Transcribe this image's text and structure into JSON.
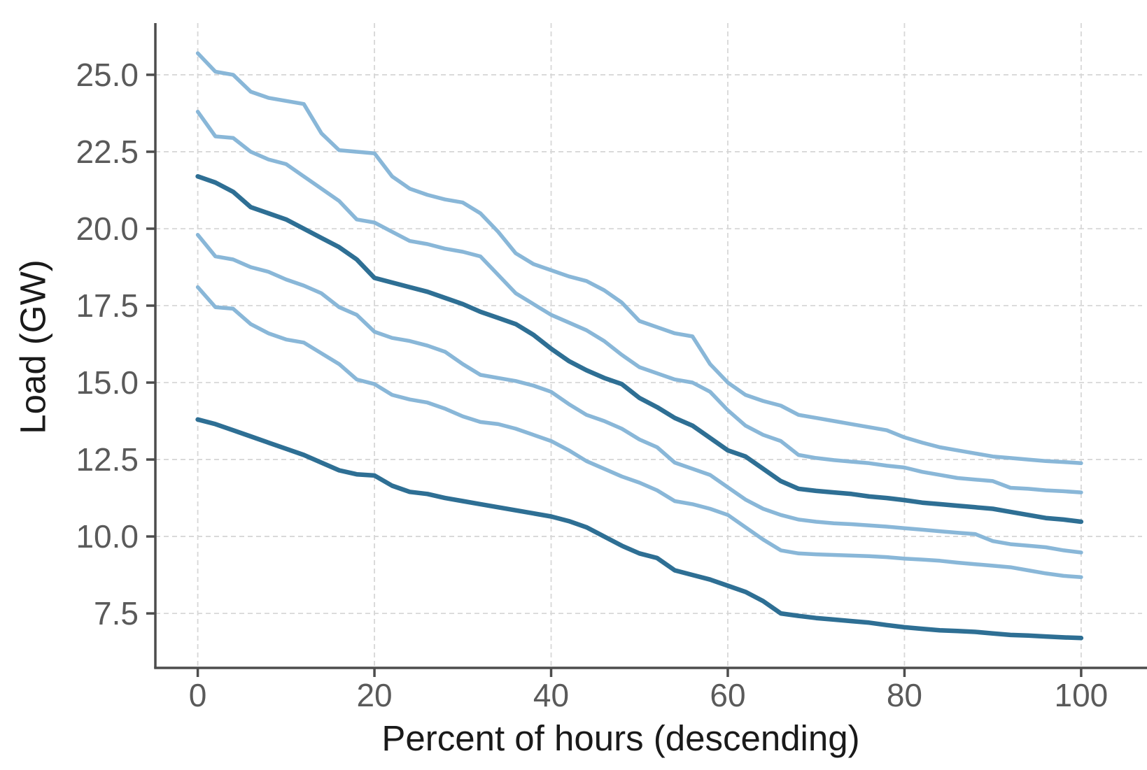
{
  "figure": {
    "x_axis_title": "Percent of hours (descending)",
    "y_axis_title": "Load (GW)"
  },
  "style": {
    "background": "#ffffff",
    "light_blue": "#89b7d8",
    "dark_blue": "#2e6f94",
    "grid_color": "#d7d7d7",
    "spine_color": "#4d4d4d",
    "tick_label_color": "#5a5a5a",
    "axis_title_color": "#1a1a1a"
  },
  "chart_data": {
    "type": "line",
    "title": "",
    "xlabel": "Percent of hours (descending)",
    "ylabel": "Load (GW)",
    "xlim": [
      -4.8,
      106.9
    ],
    "ylim": [
      5.73,
      26.68
    ],
    "x_ticks": [
      0,
      20,
      40,
      60,
      80,
      100
    ],
    "x_tick_labels": [
      "0",
      "20",
      "40",
      "60",
      "80",
      "100"
    ],
    "y_ticks": [
      7.5,
      10.0,
      12.5,
      15.0,
      17.5,
      20.0,
      22.5,
      25.0
    ],
    "y_tick_labels": [
      "7.5",
      "10.0",
      "12.5",
      "15.0",
      "17.5",
      "20.0",
      "22.5",
      "25.0"
    ],
    "grid": true,
    "grid_style": "dashed",
    "legend": "none",
    "x": [
      0,
      2,
      4,
      6,
      8,
      10,
      12,
      14,
      16,
      18,
      20,
      22,
      24,
      26,
      28,
      30,
      32,
      34,
      36,
      38,
      40,
      42,
      44,
      46,
      48,
      50,
      52,
      54,
      56,
      58,
      60,
      62,
      64,
      66,
      68,
      70,
      72,
      74,
      76,
      78,
      80,
      82,
      84,
      86,
      88,
      90,
      92,
      94,
      96,
      98,
      100
    ],
    "series": [
      {
        "name": "series_1",
        "color_role": "light_blue",
        "line_width": 5.5,
        "values": [
          25.7,
          25.1,
          25.0,
          24.45,
          24.25,
          24.15,
          24.05,
          23.1,
          22.55,
          22.5,
          22.45,
          21.7,
          21.3,
          21.1,
          20.95,
          20.85,
          20.5,
          19.9,
          19.2,
          18.85,
          18.65,
          18.45,
          18.3,
          18.0,
          17.6,
          17.0,
          16.8,
          16.6,
          16.5,
          15.6,
          15.0,
          14.6,
          14.4,
          14.25,
          13.95,
          13.85,
          13.75,
          13.65,
          13.55,
          13.45,
          13.22,
          13.05,
          12.9,
          12.8,
          12.7,
          12.6,
          12.55,
          12.5,
          12.45,
          12.42,
          12.38
        ]
      },
      {
        "name": "series_2",
        "color_role": "light_blue",
        "line_width": 5.5,
        "values": [
          23.8,
          23.0,
          22.95,
          22.5,
          22.25,
          22.1,
          21.7,
          21.3,
          20.9,
          20.3,
          20.2,
          19.9,
          19.6,
          19.5,
          19.35,
          19.25,
          19.1,
          18.5,
          17.9,
          17.55,
          17.2,
          16.95,
          16.7,
          16.35,
          15.9,
          15.5,
          15.3,
          15.1,
          15.0,
          14.7,
          14.1,
          13.6,
          13.3,
          13.1,
          12.65,
          12.55,
          12.48,
          12.43,
          12.38,
          12.3,
          12.24,
          12.1,
          12.0,
          11.9,
          11.85,
          11.8,
          11.58,
          11.55,
          11.5,
          11.47,
          11.43
        ]
      },
      {
        "name": "series_3",
        "color_role": "dark_blue",
        "line_width": 6.5,
        "values": [
          21.7,
          21.5,
          21.2,
          20.7,
          20.5,
          20.3,
          20.0,
          19.7,
          19.4,
          19.0,
          18.4,
          18.25,
          18.1,
          17.95,
          17.75,
          17.55,
          17.3,
          17.1,
          16.9,
          16.55,
          16.1,
          15.7,
          15.4,
          15.15,
          14.95,
          14.5,
          14.2,
          13.85,
          13.6,
          13.2,
          12.8,
          12.6,
          12.2,
          11.8,
          11.55,
          11.48,
          11.43,
          11.38,
          11.3,
          11.25,
          11.18,
          11.1,
          11.05,
          11.0,
          10.95,
          10.9,
          10.8,
          10.7,
          10.6,
          10.55,
          10.48
        ]
      },
      {
        "name": "series_4",
        "color_role": "light_blue",
        "line_width": 5.5,
        "values": [
          19.8,
          19.1,
          19.0,
          18.75,
          18.6,
          18.35,
          18.15,
          17.9,
          17.45,
          17.2,
          16.65,
          16.45,
          16.35,
          16.2,
          16.0,
          15.6,
          15.25,
          15.15,
          15.05,
          14.9,
          14.7,
          14.3,
          13.95,
          13.75,
          13.5,
          13.15,
          12.9,
          12.4,
          12.2,
          12.0,
          11.6,
          11.2,
          10.9,
          10.7,
          10.55,
          10.48,
          10.43,
          10.4,
          10.36,
          10.32,
          10.27,
          10.22,
          10.17,
          10.12,
          10.08,
          9.85,
          9.75,
          9.7,
          9.65,
          9.55,
          9.48
        ]
      },
      {
        "name": "series_5",
        "color_role": "light_blue",
        "line_width": 5.5,
        "values": [
          18.1,
          17.45,
          17.4,
          16.9,
          16.6,
          16.4,
          16.3,
          15.95,
          15.6,
          15.1,
          14.95,
          14.6,
          14.45,
          14.35,
          14.15,
          13.9,
          13.72,
          13.65,
          13.5,
          13.3,
          13.1,
          12.8,
          12.45,
          12.2,
          11.95,
          11.75,
          11.5,
          11.15,
          11.05,
          10.9,
          10.7,
          10.3,
          9.9,
          9.55,
          9.45,
          9.42,
          9.4,
          9.38,
          9.36,
          9.33,
          9.28,
          9.25,
          9.21,
          9.15,
          9.1,
          9.05,
          9.0,
          8.9,
          8.8,
          8.72,
          8.68
        ]
      },
      {
        "name": "series_6",
        "color_role": "dark_blue",
        "line_width": 6.5,
        "values": [
          13.8,
          13.65,
          13.45,
          13.25,
          13.05,
          12.85,
          12.65,
          12.4,
          12.15,
          12.02,
          11.98,
          11.65,
          11.45,
          11.38,
          11.25,
          11.15,
          11.05,
          10.95,
          10.85,
          10.75,
          10.65,
          10.5,
          10.3,
          10.0,
          9.7,
          9.45,
          9.3,
          8.9,
          8.75,
          8.6,
          8.4,
          8.2,
          7.9,
          7.5,
          7.42,
          7.35,
          7.3,
          7.25,
          7.2,
          7.12,
          7.05,
          7.0,
          6.95,
          6.93,
          6.9,
          6.85,
          6.8,
          6.78,
          6.75,
          6.72,
          6.7
        ]
      }
    ]
  }
}
